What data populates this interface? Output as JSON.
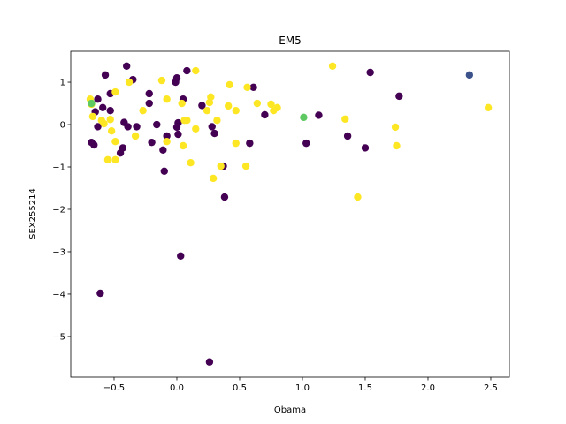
{
  "chart_data": {
    "type": "scatter",
    "title": "EM5",
    "x_label": "Obama",
    "y_label": "SEX255214",
    "xlim": [
      -0.845,
      2.648
    ],
    "ylim": [
      -5.96,
      1.73
    ],
    "xticks": [
      {
        "value": -0.5,
        "label": "−0.5"
      },
      {
        "value": 0,
        "label": "0.0"
      },
      0.5,
      {
        "value": 1,
        "label": "1.0"
      },
      1.5,
      {
        "value": 2,
        "label": "2.0"
      },
      2.5
    ],
    "yticks": [
      {
        "value": -5,
        "label": "−5"
      },
      {
        "value": -4,
        "label": "−4"
      },
      {
        "value": -3,
        "label": "−3"
      },
      {
        "value": -2,
        "label": "−2"
      },
      {
        "value": -1,
        "label": "−1"
      },
      0,
      1
    ],
    "series": [
      {
        "color": "#440154",
        "x": [
          -0.57,
          -0.4,
          -0.35,
          0.08,
          -0.01,
          0.0,
          -0.22,
          -0.22,
          -0.53,
          -0.63,
          -0.59,
          -0.53,
          -0.65,
          0.05,
          0.2,
          0.61,
          0.7,
          1.13,
          1.54,
          1.77,
          -0.42,
          -0.39,
          -0.32,
          -0.16,
          0.01,
          0.0,
          0.01,
          -0.08,
          -0.63,
          -0.68,
          -0.66,
          -0.2,
          -0.11,
          -0.43,
          -0.45,
          0.28,
          0.3,
          0.58,
          1.03,
          1.36,
          1.5,
          0.37,
          -0.1,
          0.38,
          0.03,
          -0.61,
          0.26
        ],
        "values": [
          1.17,
          1.38,
          1.06,
          1.27,
          1.0,
          1.1,
          0.73,
          0.5,
          0.73,
          0.6,
          0.4,
          0.33,
          0.3,
          0.6,
          0.45,
          0.88,
          0.23,
          0.22,
          1.23,
          0.67,
          0.05,
          -0.05,
          -0.05,
          0.0,
          0.04,
          -0.06,
          -0.23,
          -0.27,
          -0.05,
          -0.42,
          -0.48,
          -0.42,
          -0.6,
          -0.55,
          -0.67,
          -0.05,
          -0.21,
          -0.44,
          -0.44,
          -0.27,
          -0.55,
          -0.98,
          -1.1,
          -1.71,
          -3.1,
          -3.98,
          -5.6
        ]
      },
      {
        "color": "#fde725",
        "x": [
          -0.69,
          -0.67,
          -0.68,
          -0.49,
          -0.38,
          -0.12,
          0.15,
          0.42,
          0.27,
          0.26,
          0.56,
          0.64,
          0.75,
          0.77,
          0.8,
          1.24,
          1.34,
          -0.08,
          0.04,
          0.41,
          0.47,
          0.24,
          -0.27,
          -0.6,
          -0.53,
          -0.58,
          0.06,
          0.08,
          0.15,
          0.32,
          -0.52,
          -0.33,
          -0.49,
          -0.08,
          0.05,
          0.47,
          -0.55,
          -0.49,
          0.11,
          0.35,
          0.55,
          0.29,
          1.44,
          1.74,
          1.75,
          2.48
        ],
        "values": [
          0.6,
          0.19,
          0.48,
          0.77,
          1.0,
          1.04,
          1.27,
          0.94,
          0.65,
          0.52,
          0.88,
          0.5,
          0.48,
          0.33,
          0.4,
          1.38,
          0.13,
          0.6,
          0.5,
          0.44,
          0.33,
          0.33,
          0.33,
          0.1,
          0.12,
          0.02,
          0.1,
          0.1,
          -0.1,
          0.1,
          -0.15,
          -0.27,
          -0.4,
          -0.4,
          -0.5,
          -0.44,
          -0.83,
          -0.83,
          -0.9,
          -0.98,
          -0.98,
          -1.27,
          -1.71,
          -0.06,
          -0.5,
          0.4
        ]
      },
      {
        "color": "#5ec962",
        "x": [
          -0.68,
          1.01
        ],
        "values": [
          0.5,
          0.17
        ]
      },
      {
        "color": "#3b528b",
        "x": [
          2.33
        ],
        "values": [
          1.17
        ]
      }
    ]
  }
}
